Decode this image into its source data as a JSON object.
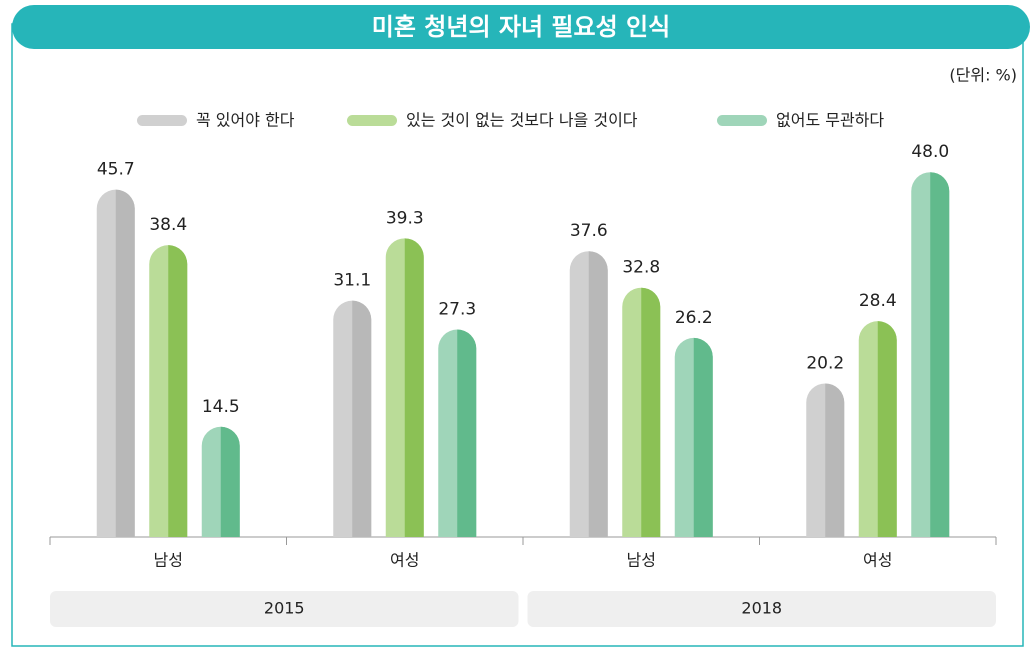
{
  "chart_data": {
    "type": "bar",
    "title": "미혼 청년의 자녀 필요성 인식",
    "unit": "(단위: %)",
    "categories": [
      "남성",
      "여성",
      "남성",
      "여성"
    ],
    "groups": [
      "2015",
      "2018"
    ],
    "series": [
      {
        "name": "꼭 있어야 한다",
        "color": "#d0d0d0",
        "shade": "#b8b8b8",
        "values": [
          45.7,
          31.1,
          37.6,
          20.2
        ],
        "value_labels": [
          "45.7",
          "31.1",
          "37.6",
          "20.2"
        ]
      },
      {
        "name": "있는 것이 없는 것보다 나을 것이다",
        "color": "#badc98",
        "shade": "#8bc155",
        "values": [
          38.4,
          39.3,
          32.8,
          28.4
        ],
        "value_labels": [
          "38.4",
          "39.3",
          "32.8",
          "28.4"
        ]
      },
      {
        "name": "없어도 무관하다",
        "color": "#9fd5b9",
        "shade": "#61ba8c",
        "values": [
          14.5,
          27.3,
          26.2,
          48.0
        ],
        "value_labels": [
          "14.5",
          "27.3",
          "26.2",
          "48.0"
        ]
      }
    ],
    "ylim": [
      0,
      50
    ],
    "legend": "top"
  }
}
